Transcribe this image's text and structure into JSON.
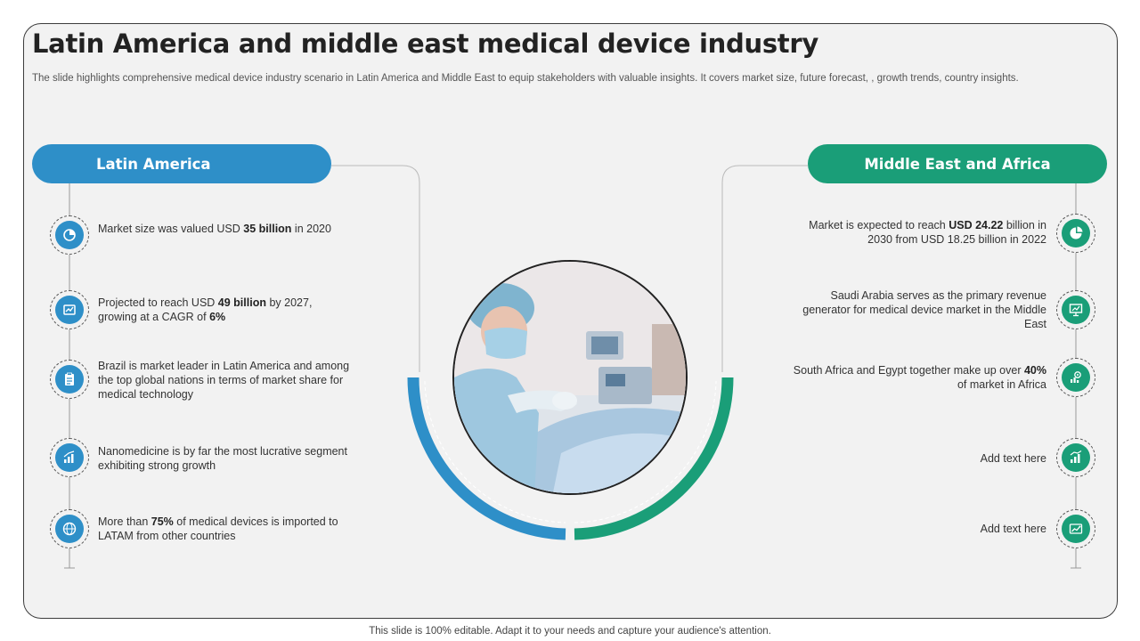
{
  "slide": {
    "title": "Latin America and middle east medical device industry",
    "subtitle": "The slide highlights comprehensive medical device industry scenario in Latin America and Middle East to equip stakeholders with valuable insights.  It covers market size, future forecast, , growth trends, country insights.",
    "footer": "This slide is 100% editable. Adapt it to your needs and capture your audience's attention."
  },
  "colors": {
    "latam": "#2e8fc8",
    "mea": "#1a9e78",
    "background": "#f2f2f2"
  },
  "latin_america": {
    "heading": "Latin America",
    "items": [
      {
        "icon": "market-size-icon",
        "pre": "Market size was valued USD ",
        "bold": "35 billion",
        "post": " in 2020"
      },
      {
        "icon": "projection-icon",
        "pre": "Projected to reach USD ",
        "bold": "49 billion",
        "post": " by 2027, growing at a CAGR of ",
        "bold2": "6%"
      },
      {
        "icon": "clipboard-icon",
        "pre": "Brazil is market leader in Latin America and among the top global nations in terms of market share for medical technology"
      },
      {
        "icon": "growth-chart-icon",
        "pre": "Nanomedicine is by far the most lucrative segment exhibiting strong growth"
      },
      {
        "icon": "globe-icon",
        "pre": "More than ",
        "bold": "75%",
        "post": " of medical devices is imported to LATAM from other countries"
      }
    ]
  },
  "middle_east_africa": {
    "heading": "Middle East and Africa",
    "items": [
      {
        "icon": "pie-chart-icon",
        "pre": "Market is expected to reach ",
        "bold": "USD 24.22",
        "post": " billion in 2030 from USD 18.25 billion in 2022"
      },
      {
        "icon": "presentation-icon",
        "pre": "Saudi Arabia serves as the primary revenue generator for medical device market in the Middle East"
      },
      {
        "icon": "revenue-gear-icon",
        "pre": "South Africa and Egypt together make up over ",
        "bold": "40%",
        "post": " of market in Africa"
      },
      {
        "icon": "bar-growth-icon",
        "pre": "Add text here"
      },
      {
        "icon": "analytics-icon",
        "pre": "Add text here"
      }
    ]
  }
}
